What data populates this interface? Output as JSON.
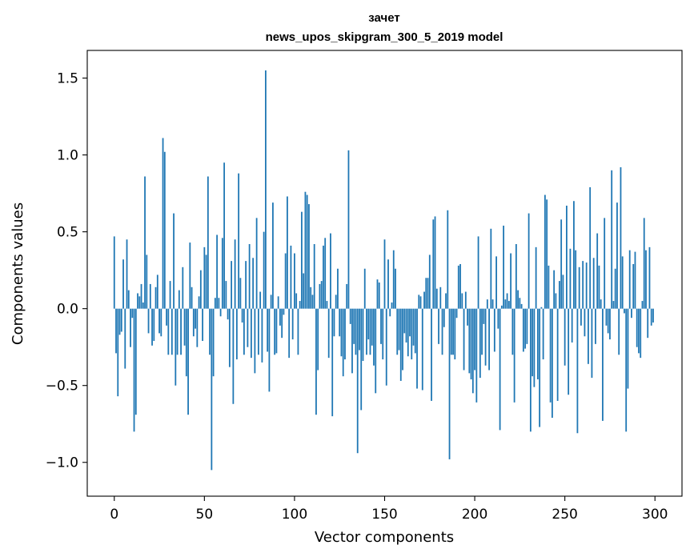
{
  "chart_data": {
    "type": "bar",
    "title": "зачет",
    "subtitle": "news_upos_skipgram_300_5_2019 model",
    "xlabel": "Vector components",
    "ylabel": "Components values",
    "xlim": [
      -15,
      315
    ],
    "ylim": [
      -1.22,
      1.68
    ],
    "xticks": [
      0,
      50,
      100,
      150,
      200,
      250,
      300
    ],
    "yticks": [
      -1.0,
      -0.5,
      0.0,
      0.5,
      1.0,
      1.5
    ],
    "ytick_labels": [
      "−1.0",
      "−0.5",
      "0.0",
      "0.5",
      "1.0",
      "1.5"
    ],
    "xtick_labels": [
      "0",
      "50",
      "100",
      "150",
      "200",
      "250",
      "300"
    ],
    "grid": false,
    "bar_color": "#1f77b4",
    "x": [
      0,
      1,
      2,
      3,
      4,
      5,
      6,
      7,
      8,
      9,
      10,
      11,
      12,
      13,
      14,
      15,
      16,
      17,
      18,
      19,
      20,
      21,
      22,
      23,
      24,
      25,
      26,
      27,
      28,
      29,
      30,
      31,
      32,
      33,
      34,
      35,
      36,
      37,
      38,
      39,
      40,
      41,
      42,
      43,
      44,
      45,
      46,
      47,
      48,
      49,
      50,
      51,
      52,
      53,
      54,
      55,
      56,
      57,
      58,
      59,
      60,
      61,
      62,
      63,
      64,
      65,
      66,
      67,
      68,
      69,
      70,
      71,
      72,
      73,
      74,
      75,
      76,
      77,
      78,
      79,
      80,
      81,
      82,
      83,
      84,
      85,
      86,
      87,
      88,
      89,
      90,
      91,
      92,
      93,
      94,
      95,
      96,
      97,
      98,
      99,
      100,
      101,
      102,
      103,
      104,
      105,
      106,
      107,
      108,
      109,
      110,
      111,
      112,
      113,
      114,
      115,
      116,
      117,
      118,
      119,
      120,
      121,
      122,
      123,
      124,
      125,
      126,
      127,
      128,
      129,
      130,
      131,
      132,
      133,
      134,
      135,
      136,
      137,
      138,
      139,
      140,
      141,
      142,
      143,
      144,
      145,
      146,
      147,
      148,
      149,
      150,
      151,
      152,
      153,
      154,
      155,
      156,
      157,
      158,
      159,
      160,
      161,
      162,
      163,
      164,
      165,
      166,
      167,
      168,
      169,
      170,
      171,
      172,
      173,
      174,
      175,
      176,
      177,
      178,
      179,
      180,
      181,
      182,
      183,
      184,
      185,
      186,
      187,
      188,
      189,
      190,
      191,
      192,
      193,
      194,
      195,
      196,
      197,
      198,
      199,
      200,
      201,
      202,
      203,
      204,
      205,
      206,
      207,
      208,
      209,
      210,
      211,
      212,
      213,
      214,
      215,
      216,
      217,
      218,
      219,
      220,
      221,
      222,
      223,
      224,
      225,
      226,
      227,
      228,
      229,
      230,
      231,
      232,
      233,
      234,
      235,
      236,
      237,
      238,
      239,
      240,
      241,
      242,
      243,
      244,
      245,
      246,
      247,
      248,
      249,
      250,
      251,
      252,
      253,
      254,
      255,
      256,
      257,
      258,
      259,
      260,
      261,
      262,
      263,
      264,
      265,
      266,
      267,
      268,
      269,
      270,
      271,
      272,
      273,
      274,
      275,
      276,
      277,
      278,
      279,
      280,
      281,
      282,
      283,
      284,
      285,
      286,
      287,
      288,
      289,
      290,
      291,
      292,
      293,
      294,
      295,
      296,
      297,
      298,
      299
    ],
    "values": [
      0.47,
      -0.29,
      -0.57,
      -0.17,
      -0.15,
      0.32,
      -0.39,
      0.45,
      0.12,
      -0.25,
      -0.06,
      -0.8,
      -0.69,
      0.1,
      0.08,
      0.16,
      0.04,
      0.86,
      0.35,
      -0.16,
      0.16,
      -0.24,
      -0.21,
      0.14,
      0.22,
      -0.16,
      -0.18,
      1.11,
      1.02,
      -0.11,
      -0.3,
      0.18,
      -0.3,
      0.62,
      -0.5,
      -0.3,
      0.12,
      -0.3,
      0.27,
      -0.24,
      -0.44,
      -0.69,
      0.43,
      0.14,
      -0.18,
      -0.13,
      -0.25,
      0.08,
      0.25,
      -0.21,
      0.4,
      0.35,
      0.86,
      -0.3,
      -1.05,
      -0.44,
      0.07,
      0.48,
      0.07,
      -0.05,
      0.46,
      0.95,
      0.18,
      -0.07,
      -0.38,
      0.31,
      -0.62,
      0.45,
      -0.33,
      0.88,
      0.2,
      -0.09,
      -0.3,
      0.31,
      -0.25,
      0.42,
      -0.32,
      0.33,
      -0.42,
      0.59,
      -0.3,
      0.11,
      -0.35,
      0.5,
      1.55,
      -0.28,
      -0.54,
      0.09,
      0.69,
      -0.3,
      -0.29,
      0.08,
      -0.11,
      -0.19,
      -0.04,
      0.36,
      0.73,
      -0.32,
      0.41,
      -0.2,
      0.36,
      0.1,
      -0.3,
      0.05,
      0.63,
      0.23,
      0.76,
      0.74,
      0.68,
      0.14,
      0.09,
      0.42,
      -0.69,
      -0.4,
      0.16,
      0.18,
      0.41,
      0.46,
      0.05,
      -0.32,
      0.49,
      -0.7,
      -0.18,
      0.09,
      0.26,
      -0.18,
      -0.31,
      -0.44,
      -0.33,
      0.16,
      1.03,
      -0.1,
      -0.42,
      -0.23,
      -0.3,
      -0.94,
      -0.27,
      -0.66,
      -0.34,
      0.26,
      -0.3,
      -0.2,
      -0.3,
      -0.24,
      -0.37,
      -0.55,
      0.19,
      0.17,
      -0.23,
      -0.33,
      0.45,
      -0.5,
      0.32,
      -0.05,
      0.04,
      0.38,
      0.26,
      -0.3,
      -0.27,
      -0.47,
      -0.4,
      -0.16,
      -0.22,
      -0.31,
      -0.18,
      -0.33,
      -0.24,
      -0.29,
      -0.52,
      0.09,
      0.08,
      -0.53,
      0.11,
      0.2,
      0.2,
      0.35,
      -0.6,
      0.58,
      0.6,
      0.13,
      -0.23,
      0.14,
      -0.3,
      -0.12,
      0.1,
      0.64,
      -0.98,
      -0.3,
      -0.3,
      -0.33,
      -0.06,
      0.28,
      0.29,
      0.1,
      -0.4,
      0.11,
      -0.11,
      -0.42,
      -0.46,
      -0.55,
      -0.4,
      -0.61,
      0.47,
      -0.45,
      -0.3,
      -0.1,
      -0.37,
      0.06,
      -0.4,
      0.52,
      0.06,
      -0.28,
      0.34,
      -0.13,
      -0.79,
      0.02,
      0.54,
      0.06,
      0.1,
      0.05,
      0.36,
      -0.3,
      -0.61,
      0.42,
      0.12,
      0.07,
      0.03,
      -0.28,
      -0.26,
      -0.23,
      0.62,
      -0.8,
      -0.44,
      -0.51,
      0.4,
      -0.46,
      -0.77,
      0.01,
      -0.33,
      0.74,
      0.71,
      0.28,
      -0.61,
      -0.71,
      0.25,
      0.1,
      -0.6,
      0.18,
      0.58,
      0.22,
      -0.37,
      0.67,
      -0.56,
      0.39,
      -0.22,
      0.7,
      0.38,
      -0.81,
      0.27,
      -0.11,
      0.31,
      -0.18,
      0.3,
      -0.36,
      0.79,
      -0.45,
      0.33,
      -0.23,
      0.49,
      0.28,
      0.06,
      -0.73,
      0.59,
      -0.11,
      -0.16,
      -0.2,
      0.9,
      0.05,
      0.26,
      0.69,
      -0.3,
      0.92,
      0.34,
      -0.03,
      -0.8,
      -0.52,
      0.38,
      -0.06,
      0.29,
      0.37,
      -0.25,
      -0.29,
      -0.32,
      0.05,
      0.59,
      0.38,
      -0.19,
      0.4,
      -0.11,
      -0.09
    ]
  }
}
